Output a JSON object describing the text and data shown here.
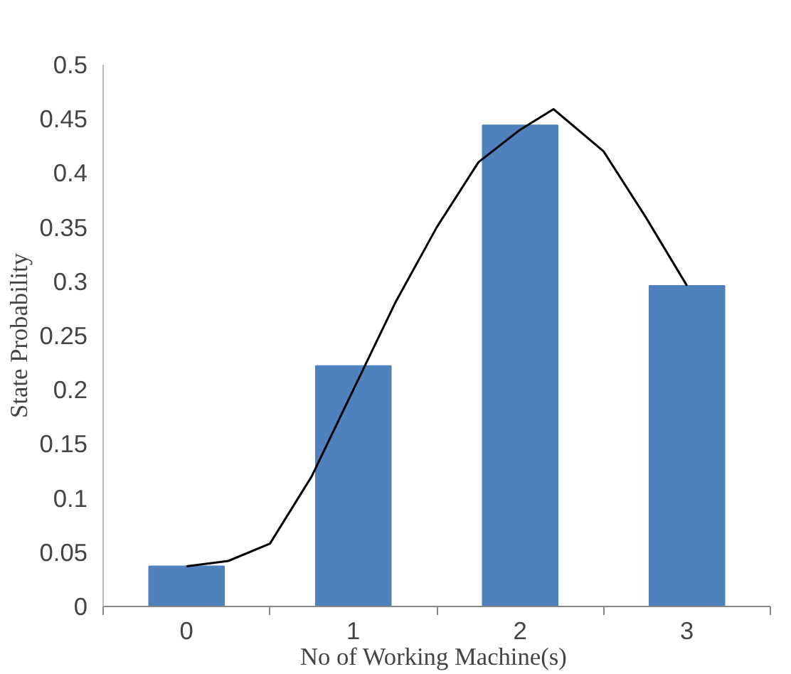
{
  "chart_data": {
    "type": "bar",
    "xlabel": "No of Working  Machine(s)",
    "ylabel": "State Probability",
    "x": [
      0,
      1,
      2,
      3
    ],
    "series": [
      {
        "color": "#4f81bd",
        "values": [
          0.037,
          0.222,
          0.444,
          0.296
        ]
      },
      {
        "type": "line",
        "color": "#000000",
        "x": [
          0,
          0.25,
          0.5,
          0.75,
          1,
          1.25,
          1.5,
          1.75,
          2,
          2.2,
          2.5,
          2.75,
          3
        ],
        "values": [
          0.037,
          0.042,
          0.058,
          0.12,
          0.2,
          0.28,
          0.35,
          0.41,
          0.44,
          0.459,
          0.42,
          0.36,
          0.296
        ]
      }
    ],
    "xlim": [
      -0.5,
      3.5
    ],
    "xticks": [
      {
        "value": -0.5,
        "label": null
      },
      0,
      {
        "value": 0.5,
        "label": null
      },
      1,
      {
        "value": 1.5,
        "label": null
      },
      2,
      {
        "value": 2.5,
        "label": null
      },
      3,
      {
        "value": 3.5,
        "label": null
      }
    ],
    "ylim": [
      0,
      0.5
    ],
    "yticks": [
      0,
      0.05,
      0.1,
      0.15,
      0.2,
      0.25,
      0.3,
      0.35,
      0.4,
      0.45,
      0.5
    ],
    "grid": false,
    "marker": "none",
    "line_style": "solid"
  }
}
